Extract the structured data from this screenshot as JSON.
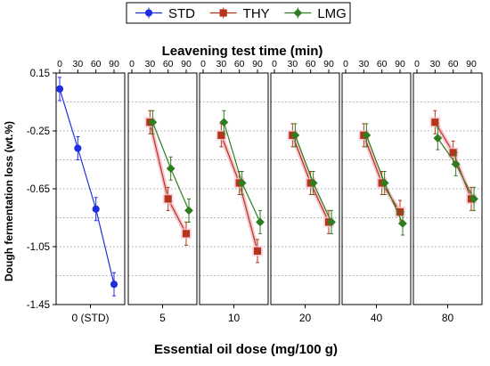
{
  "chart_data": {
    "type": "line",
    "top_axis_label": "Leavening test time (min)",
    "xlabel": "Essential oil dose (mg/100 g)",
    "ylabel": "Dough fermentation loss (wt.%)",
    "ylim": [
      -1.45,
      0.15
    ],
    "y_ticks": [
      "0.15",
      "-0.25",
      "-0.65",
      "-1.05",
      "-1.45"
    ],
    "y_tick_values": [
      0.15,
      -0.25,
      -0.65,
      -1.05,
      -1.45
    ],
    "time_ticks": [
      "0",
      "30",
      "60",
      "90"
    ],
    "time_tick_values": [
      0,
      30,
      60,
      90
    ],
    "grid": true,
    "legend_position": "top-center",
    "legend": [
      {
        "key": "STD",
        "label": "STD",
        "color": "#1f2fe0",
        "marker": "circle"
      },
      {
        "key": "THY",
        "label": "THY",
        "color": "#b5341c",
        "marker": "square"
      },
      {
        "key": "LMG",
        "label": "LMG",
        "color": "#2e7d20",
        "marker": "diamond"
      }
    ],
    "panels": [
      {
        "dose_label": "0 (STD)",
        "series": [
          {
            "key": "STD",
            "x": [
              0,
              30,
              60,
              90
            ],
            "y": [
              0.04,
              -0.37,
              -0.79,
              -1.31
            ],
            "err": [
              0.08,
              0.08,
              0.08,
              0.08
            ]
          }
        ]
      },
      {
        "dose_label": "5",
        "series": [
          {
            "key": "THY",
            "x": [
              30,
              60,
              90
            ],
            "y": [
              -0.19,
              -0.72,
              -0.96
            ],
            "err": [
              0.08,
              0.08,
              0.08
            ]
          },
          {
            "key": "LMG",
            "x": [
              30,
              60,
              90
            ],
            "y": [
              -0.19,
              -0.51,
              -0.8
            ],
            "err": [
              0.08,
              0.08,
              0.08
            ]
          }
        ]
      },
      {
        "dose_label": "10",
        "series": [
          {
            "key": "THY",
            "x": [
              30,
              60,
              90
            ],
            "y": [
              -0.28,
              -0.61,
              -1.08
            ],
            "err": [
              0.08,
              0.08,
              0.08
            ]
          },
          {
            "key": "LMG",
            "x": [
              30,
              60,
              90
            ],
            "y": [
              -0.19,
              -0.61,
              -0.88
            ],
            "err": [
              0.08,
              0.08,
              0.08
            ]
          }
        ]
      },
      {
        "dose_label": "20",
        "series": [
          {
            "key": "THY",
            "x": [
              30,
              60,
              90
            ],
            "y": [
              -0.28,
              -0.61,
              -0.88
            ],
            "err": [
              0.08,
              0.08,
              0.08
            ]
          },
          {
            "key": "LMG",
            "x": [
              30,
              60,
              90
            ],
            "y": [
              -0.28,
              -0.61,
              -0.88
            ],
            "err": [
              0.08,
              0.08,
              0.08
            ]
          }
        ]
      },
      {
        "dose_label": "40",
        "series": [
          {
            "key": "THY",
            "x": [
              30,
              60,
              90
            ],
            "y": [
              -0.28,
              -0.61,
              -0.81
            ],
            "err": [
              0.08,
              0.08,
              0.08
            ]
          },
          {
            "key": "LMG",
            "x": [
              30,
              60,
              90
            ],
            "y": [
              -0.28,
              -0.61,
              -0.89
            ],
            "err": [
              0.08,
              0.08,
              0.08
            ]
          }
        ]
      },
      {
        "dose_label": "80",
        "series": [
          {
            "key": "THY",
            "x": [
              30,
              60,
              90
            ],
            "y": [
              -0.19,
              -0.4,
              -0.72
            ],
            "err": [
              0.08,
              0.08,
              0.08
            ]
          },
          {
            "key": "LMG",
            "x": [
              30,
              60,
              90
            ],
            "y": [
              -0.3,
              -0.48,
              -0.72
            ],
            "err": [
              0.08,
              0.08,
              0.08
            ]
          }
        ]
      }
    ]
  }
}
